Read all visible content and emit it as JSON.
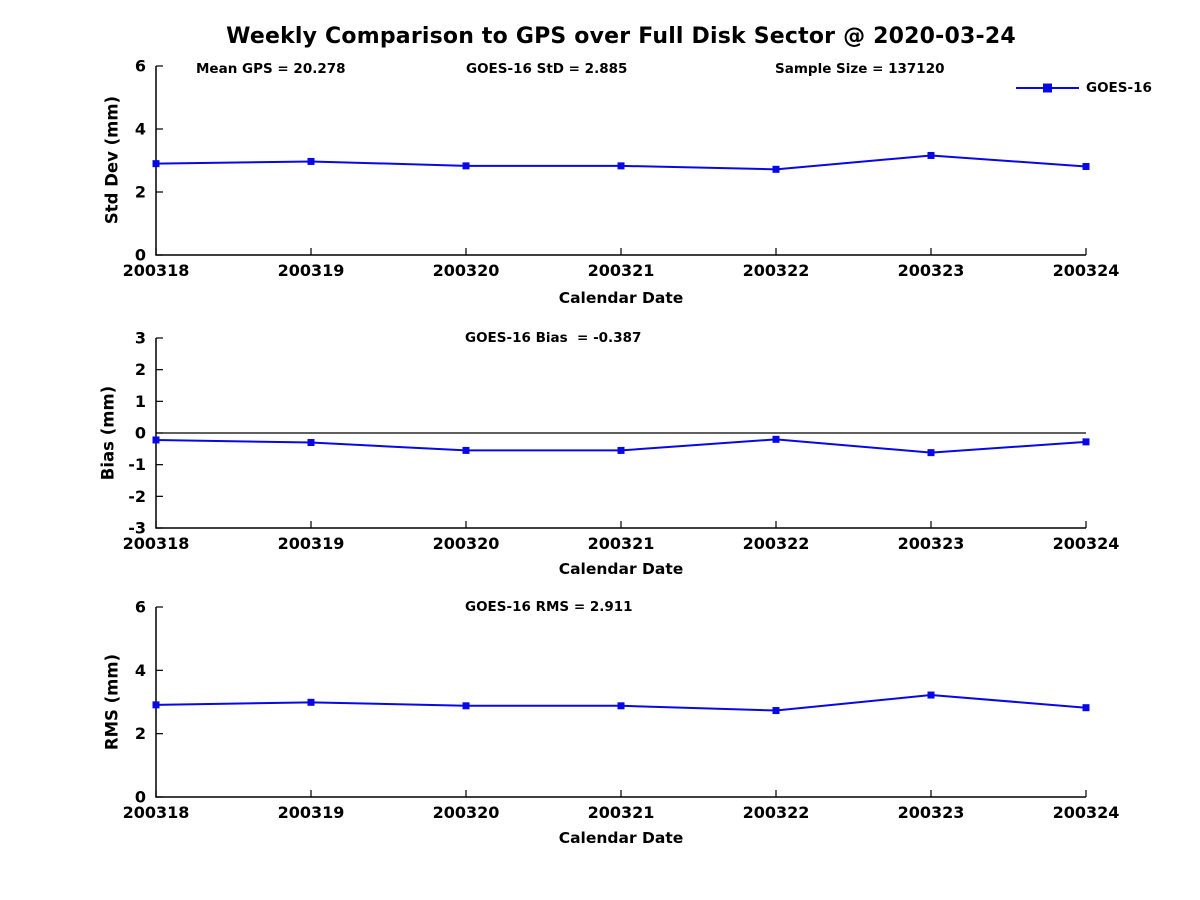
{
  "title": "Weekly Comparison to GPS over Full Disk Sector @ 2020-03-24",
  "legend": {
    "label": "GOES-16"
  },
  "colors": {
    "line": "#0808e6",
    "axis": "#000000",
    "zero_line": "#000000",
    "background": "#ffffff"
  },
  "xlabel": "Calendar Date",
  "annotations": {
    "mean_gps": "Mean GPS = 20.278",
    "std": "GOES-16 StD = 2.885",
    "sample_size": "Sample Size = 137120",
    "bias": "GOES-16 Bias  = -0.387",
    "rms": "GOES-16 RMS = 2.911"
  },
  "chart_data": [
    {
      "type": "line",
      "name": "std-dev",
      "ylabel": "Std Dev (mm)",
      "xlabel": "Calendar Date",
      "categories": [
        "200318",
        "200319",
        "200320",
        "200321",
        "200322",
        "200323",
        "200324"
      ],
      "series": [
        {
          "name": "GOES-16",
          "values": [
            2.9,
            2.97,
            2.83,
            2.83,
            2.72,
            3.16,
            2.81
          ]
        }
      ],
      "ylim": [
        0,
        6
      ],
      "yticks": [
        0,
        2,
        4,
        6
      ],
      "zero_line": false,
      "grid": false,
      "legend_position": "top-right",
      "marker": "square"
    },
    {
      "type": "line",
      "name": "bias",
      "ylabel": "Bias (mm)",
      "xlabel": "Calendar Date",
      "categories": [
        "200318",
        "200319",
        "200320",
        "200321",
        "200322",
        "200323",
        "200324"
      ],
      "series": [
        {
          "name": "GOES-16",
          "values": [
            -0.22,
            -0.3,
            -0.55,
            -0.55,
            -0.2,
            -0.62,
            -0.28
          ]
        }
      ],
      "ylim": [
        -3,
        3
      ],
      "yticks": [
        -3,
        -2,
        -1,
        0,
        1,
        2,
        3
      ],
      "zero_line": true,
      "grid": false,
      "legend_position": "none",
      "marker": "square"
    },
    {
      "type": "line",
      "name": "rms",
      "ylabel": "RMS (mm)",
      "xlabel": "Calendar Date",
      "categories": [
        "200318",
        "200319",
        "200320",
        "200321",
        "200322",
        "200323",
        "200324"
      ],
      "series": [
        {
          "name": "GOES-16",
          "values": [
            2.91,
            2.99,
            2.88,
            2.88,
            2.73,
            3.22,
            2.82
          ]
        }
      ],
      "ylim": [
        0,
        6
      ],
      "yticks": [
        0,
        2,
        4,
        6
      ],
      "zero_line": false,
      "grid": false,
      "legend_position": "none",
      "marker": "square"
    }
  ]
}
